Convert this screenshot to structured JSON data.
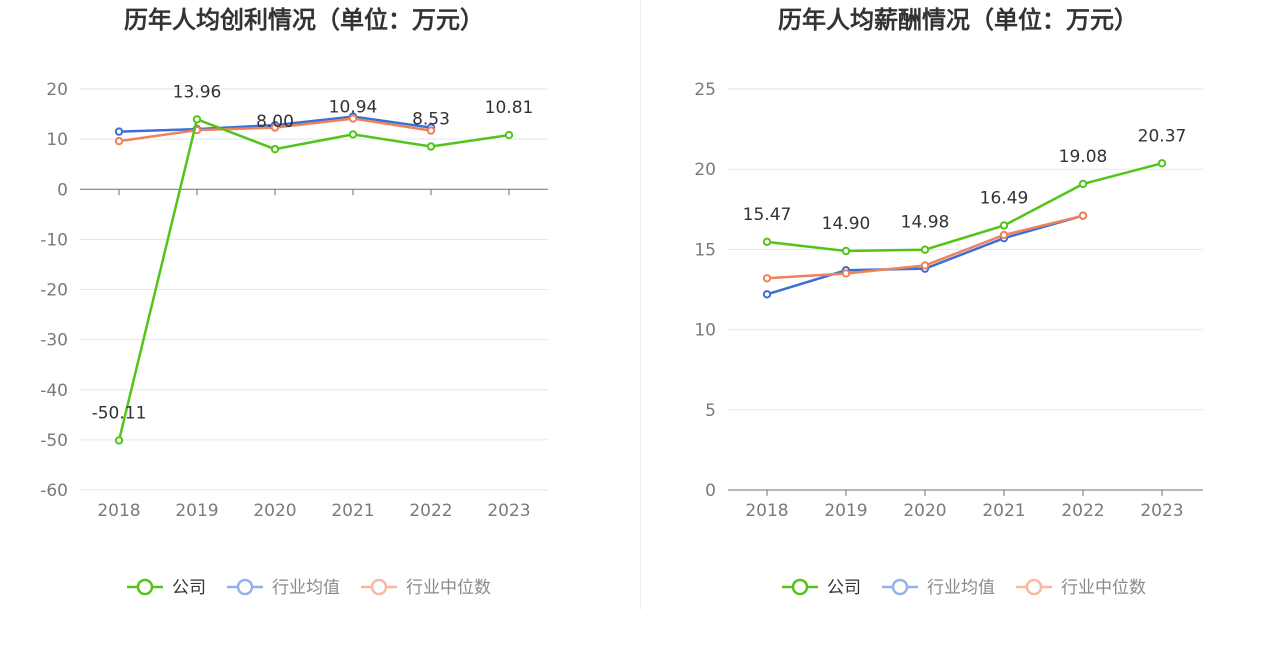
{
  "chart_data": [
    {
      "type": "line",
      "title": "历年人均创利情况（单位：万元）",
      "categories": [
        "2018",
        "2019",
        "2020",
        "2021",
        "2022",
        "2023"
      ],
      "ylim": [
        -60,
        20
      ],
      "yticks": [
        20,
        10,
        0,
        -10,
        -20,
        -30,
        -40,
        -50,
        -60
      ],
      "grid": true,
      "legend_position": "bottom",
      "series": [
        {
          "name": "公司",
          "color": "#52c41a",
          "values": [
            -50.11,
            13.96,
            8.0,
            10.94,
            8.53,
            10.81
          ],
          "labels": [
            "-50.11",
            "13.96",
            "8.00",
            "10.94",
            "8.53",
            "10.81"
          ]
        },
        {
          "name": "行业均值",
          "color": "#3a6fd8",
          "values": [
            11.5,
            12.0,
            12.8,
            14.5,
            12.3,
            null
          ]
        },
        {
          "name": "行业中位数",
          "color": "#f0825a",
          "values": [
            9.6,
            11.8,
            12.3,
            14.1,
            11.7,
            null
          ]
        }
      ]
    },
    {
      "type": "line",
      "title": "历年人均薪酬情况（单位：万元）",
      "categories": [
        "2018",
        "2019",
        "2020",
        "2021",
        "2022",
        "2023"
      ],
      "ylim": [
        0,
        25
      ],
      "yticks": [
        25,
        20,
        15,
        10,
        5,
        0
      ],
      "grid": true,
      "legend_position": "bottom",
      "series": [
        {
          "name": "公司",
          "color": "#52c41a",
          "values": [
            15.47,
            14.9,
            14.98,
            16.49,
            19.08,
            20.37
          ],
          "labels": [
            "15.47",
            "14.90",
            "14.98",
            "16.49",
            "19.08",
            "20.37"
          ]
        },
        {
          "name": "行业均值",
          "color": "#3a6fd8",
          "values": [
            12.2,
            13.7,
            13.8,
            15.7,
            17.1,
            null
          ]
        },
        {
          "name": "行业中位数",
          "color": "#f0825a",
          "values": [
            13.2,
            13.5,
            14.0,
            15.9,
            17.1,
            null
          ]
        }
      ]
    }
  ],
  "legend_colors_faded": [
    "#52c41a",
    "#93b2ec",
    "#f8b89e"
  ]
}
